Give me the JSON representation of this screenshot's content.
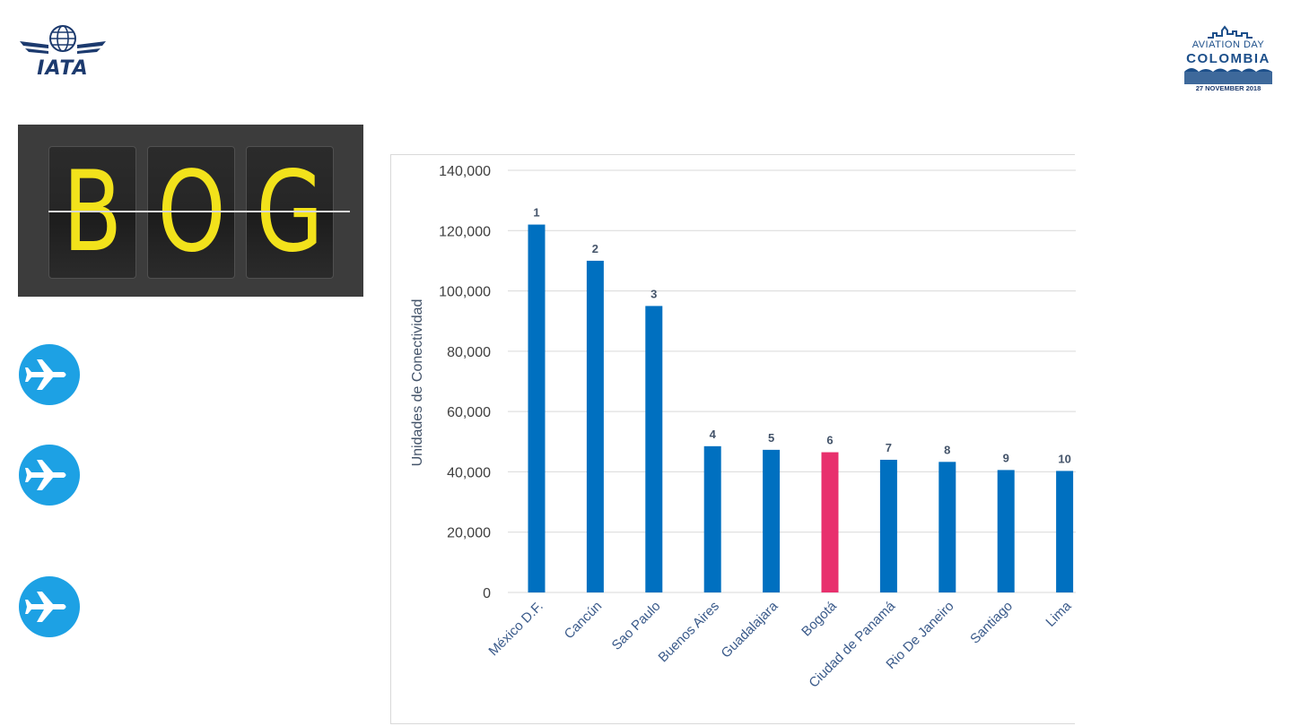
{
  "logos": {
    "iata_text": "IATA",
    "aviation_day_line1": "AVIATION DAY",
    "aviation_day_line2": "COLOMBIA",
    "aviation_day_line3": "27 NOVEMBER 2018"
  },
  "board": {
    "letters": [
      "B",
      "O",
      "G"
    ],
    "colors": {
      "letter": "#f2e21b",
      "background": "#3c3c3c"
    }
  },
  "side_icons": [
    "airplane-icon",
    "airplane-icon",
    "airplane-icon"
  ],
  "chart_data": {
    "type": "bar",
    "title": "",
    "xlabel": "",
    "ylabel": "Unidades de Conectividad",
    "categories": [
      "México D.F.",
      "Cancún",
      "Sao Paulo",
      "Buenos Aires",
      "Guadalajara",
      "Bogotá",
      "Ciudad de Panamá",
      "Rio De Janeiro",
      "Santiago",
      "Lima"
    ],
    "values": [
      122000,
      110000,
      95000,
      48500,
      47300,
      46500,
      44000,
      43300,
      40600,
      40300
    ],
    "data_labels": [
      "1",
      "2",
      "3",
      "4",
      "5",
      "6",
      "7",
      "8",
      "9",
      "10"
    ],
    "y_ticks": [
      "0",
      "20,000",
      "40,000",
      "60,000",
      "80,000",
      "100,000",
      "120,000",
      "140,000"
    ],
    "ylim": [
      0,
      140000
    ],
    "grid": true,
    "colors": {
      "default": "#0070c0",
      "highlight": "#e8306d"
    },
    "highlight_category": "Bogotá"
  }
}
